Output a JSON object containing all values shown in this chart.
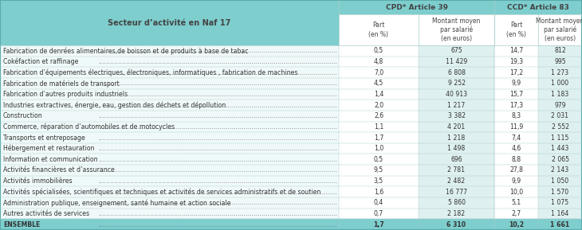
{
  "col1_header": "Secteur d’activité en Naf 17",
  "group1_header": "CPD* Article 39",
  "group2_header": "CCD* Article 83",
  "sub_headers": [
    "Part\n(en %)",
    "Montant moyen\npar salarié\n(en euros)",
    "Part\n(en %)",
    "Montant moyen\npar salarié\n(en euros)"
  ],
  "rows": [
    [
      "Fabrication de denrées alimentaires,de boisson et de produits à base de tabac",
      "0,5",
      "675",
      "14,7",
      "812"
    ],
    [
      "Cokéfaction et raffinage",
      "4,8",
      "11 429",
      "19,3",
      "995"
    ],
    [
      "Fabrication d’équipements électriques, électroniques, informatiques , fabrication de machines",
      "7,0",
      "6 808",
      "17,2",
      "1 273"
    ],
    [
      "Fabrication de matériels de transport",
      "4,5",
      "9 252",
      "9,9",
      "1 000"
    ],
    [
      "Fabrication d’autres produits industriels",
      "1,4",
      "40 913",
      "15,7",
      "1 183"
    ],
    [
      "Industries extractives, énergie, eau, gestion des déchets et dépollution",
      "2,0",
      "1 217",
      "17,3",
      "979"
    ],
    [
      "Construction",
      "2,6",
      "3 382",
      "8,3",
      "2 031"
    ],
    [
      "Commerce, réparation d’automobiles et de motocycles",
      "1,1",
      "4 201",
      "11,9",
      "2 552"
    ],
    [
      "Transports et entreposage",
      "1,7",
      "1 218",
      "7,4",
      "1 115"
    ],
    [
      "Hébergement et restauration",
      "1,0",
      "1 498",
      "4,6",
      "1 443"
    ],
    [
      "Information et communication",
      "0,5",
      "696",
      "8,8",
      "2 065"
    ],
    [
      "Activités financières et d’assurance",
      "9,5",
      "2 781",
      "27,8",
      "2 143"
    ],
    [
      "Activités immobilières",
      "3,5",
      "2 482",
      "9,9",
      "1 050"
    ],
    [
      "Activités spécialisées, scientifiques et techniques et activités de services administratifs et de soutien",
      "1,6",
      "16 777",
      "10,0",
      "1 570"
    ],
    [
      "Administration publique, enseignement, santé humaine et action sociale",
      "0,4",
      "5 860",
      "5,1",
      "1 075"
    ],
    [
      "Autres activités de services",
      "0,7",
      "2 182",
      "2,7",
      "1 164"
    ]
  ],
  "total_row": [
    "ENSEMBLE",
    "1,7",
    "6 310",
    "10,2",
    "1 661"
  ],
  "header_bg": "#7ecece",
  "white_col_bg": "#ffffff",
  "teal_col_bg": "#b2dede",
  "total_bg": "#7ecece",
  "row_bg_white": "#ffffff",
  "row_bg_teal": "#d5eeee",
  "border_color": "#aacccc",
  "text_color": "#444444"
}
